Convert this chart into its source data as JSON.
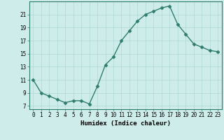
{
  "x": [
    0,
    1,
    2,
    3,
    4,
    5,
    6,
    7,
    8,
    9,
    10,
    11,
    12,
    13,
    14,
    15,
    16,
    17,
    18,
    19,
    20,
    21,
    22,
    23
  ],
  "y": [
    11,
    9,
    8.5,
    8,
    7.5,
    7.8,
    7.8,
    7.3,
    10,
    13.3,
    14.5,
    17,
    18.5,
    20,
    21,
    21.5,
    22,
    22.3,
    19.5,
    18,
    16.5,
    16,
    15.5,
    15.3
  ],
  "line_color": "#2e7d6e",
  "marker": "D",
  "markersize": 2.5,
  "linewidth": 1.0,
  "bg_color": "#ceecea",
  "grid_color": "#aed8d4",
  "xlabel": "Humidex (Indice chaleur)",
  "ylabel": "",
  "yticks": [
    7,
    9,
    11,
    13,
    15,
    17,
    19,
    21
  ],
  "ylim": [
    6.5,
    23.0
  ],
  "xlim": [
    -0.5,
    23.5
  ],
  "xtick_labels": [
    "0",
    "1",
    "2",
    "3",
    "4",
    "5",
    "6",
    "7",
    "8",
    "9",
    "10",
    "11",
    "12",
    "13",
    "14",
    "15",
    "16",
    "17",
    "18",
    "19",
    "20",
    "21",
    "22",
    "23"
  ],
  "xlabel_fontsize": 6.5,
  "tick_fontsize": 5.5
}
